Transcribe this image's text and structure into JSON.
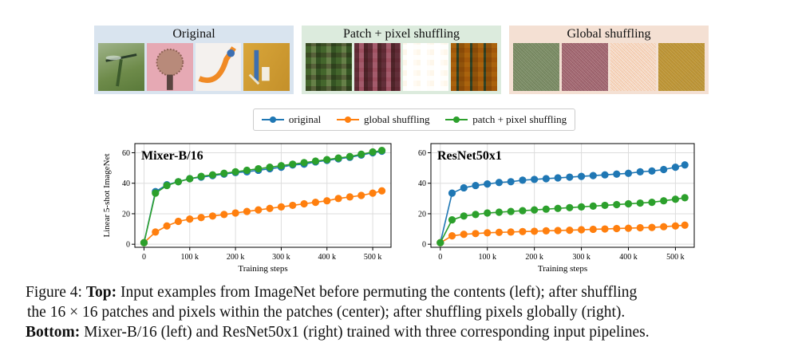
{
  "panels": {
    "original": {
      "title": "Original",
      "bg": "#d9e4ef"
    },
    "patch": {
      "title": "Patch + pixel shuffling",
      "bg": "#dcebdd"
    },
    "global": {
      "title": "Global shuffling",
      "bg": "#f4e0d3"
    }
  },
  "legend": {
    "items": [
      {
        "label": "original",
        "color": "#1f77b4"
      },
      {
        "label": "global shuffling",
        "color": "#ff7f0e"
      },
      {
        "label": "patch + pixel shuffling",
        "color": "#2ca02c"
      }
    ]
  },
  "chart_data": [
    {
      "type": "line",
      "title": "Mixer-B/16",
      "xlabel": "Training steps",
      "ylabel": "Linear 5-shot ImageNet",
      "xlim": [
        -20,
        540
      ],
      "ylim": [
        -2,
        66
      ],
      "xticks": [
        "0",
        "100 k",
        "200 k",
        "300 k",
        "400 k",
        "500 k"
      ],
      "yticks": [
        "0",
        "20",
        "40",
        "60"
      ],
      "grid": true,
      "series": [
        {
          "name": "original",
          "x": [
            0,
            25,
            50,
            75,
            100,
            125,
            150,
            175,
            200,
            225,
            250,
            275,
            300,
            325,
            350,
            375,
            400,
            425,
            450,
            475,
            500,
            520
          ],
          "y": [
            1,
            34.5,
            39,
            41,
            43,
            44,
            45,
            46,
            47,
            47.5,
            48.5,
            49.5,
            50.5,
            52,
            52.5,
            54,
            55,
            56,
            57,
            58.5,
            60,
            61
          ]
        },
        {
          "name": "global shuffling",
          "x": [
            0,
            25,
            50,
            75,
            100,
            125,
            150,
            175,
            200,
            225,
            250,
            275,
            300,
            325,
            350,
            375,
            400,
            425,
            450,
            475,
            500,
            520
          ],
          "y": [
            1,
            8,
            12,
            15,
            16.5,
            17.5,
            18.5,
            19.5,
            20.5,
            21.5,
            22.5,
            23.5,
            24.5,
            25.5,
            26.5,
            27.5,
            28.5,
            30,
            31,
            32,
            33.5,
            35
          ]
        },
        {
          "name": "patch + pixel shuffling",
          "x": [
            0,
            25,
            50,
            75,
            100,
            125,
            150,
            175,
            200,
            225,
            250,
            275,
            300,
            325,
            350,
            375,
            400,
            425,
            450,
            475,
            500,
            520
          ],
          "y": [
            1,
            33.5,
            38.5,
            41,
            43,
            44.5,
            45.5,
            46.5,
            47.5,
            48.5,
            49.5,
            50.5,
            51.5,
            52.5,
            53.5,
            54.5,
            55.5,
            56.5,
            57.5,
            59,
            60.5,
            61.5
          ]
        }
      ]
    },
    {
      "type": "line",
      "title": "ResNet50x1",
      "xlabel": "Training steps",
      "ylabel": "",
      "xlim": [
        -20,
        540
      ],
      "ylim": [
        -2,
        66
      ],
      "xticks": [
        "0",
        "100 k",
        "200 k",
        "300 k",
        "400 k",
        "500 k"
      ],
      "yticks": [
        "0",
        "20",
        "40",
        "60"
      ],
      "grid": true,
      "series": [
        {
          "name": "original",
          "x": [
            0,
            25,
            50,
            75,
            100,
            125,
            150,
            175,
            200,
            225,
            250,
            275,
            300,
            325,
            350,
            375,
            400,
            425,
            450,
            475,
            500,
            520
          ],
          "y": [
            1,
            33.5,
            37,
            38.5,
            39.5,
            40.5,
            41,
            42,
            42.5,
            43,
            43.5,
            44,
            44.5,
            45,
            45.5,
            46,
            46.5,
            47.5,
            48,
            49,
            50.5,
            52
          ]
        },
        {
          "name": "global shuffling",
          "x": [
            0,
            25,
            50,
            75,
            100,
            125,
            150,
            175,
            200,
            225,
            250,
            275,
            300,
            325,
            350,
            375,
            400,
            425,
            450,
            475,
            500,
            520
          ],
          "y": [
            1,
            5.5,
            6.5,
            7,
            7.5,
            7.8,
            8,
            8.3,
            8.5,
            8.8,
            9,
            9.2,
            9.5,
            9.8,
            10,
            10.3,
            10.5,
            10.8,
            11,
            11.5,
            12,
            12.5
          ]
        },
        {
          "name": "patch + pixel shuffling",
          "x": [
            0,
            25,
            50,
            75,
            100,
            125,
            150,
            175,
            200,
            225,
            250,
            275,
            300,
            325,
            350,
            375,
            400,
            425,
            450,
            475,
            500,
            520
          ],
          "y": [
            1,
            16,
            18.5,
            19.5,
            20.5,
            21,
            21.5,
            22,
            22.5,
            23,
            23.5,
            24,
            24.5,
            25,
            25.5,
            26,
            26.5,
            27,
            27.5,
            28.5,
            29.5,
            30.5
          ]
        }
      ]
    }
  ],
  "caption": {
    "label": "Figure 4:",
    "top_bold": "Top:",
    "line1": "Input examples from ImageNet before permuting the contents (left); after shuffling",
    "line2": "the 16 × 16 patches and pixels within the patches (center); after shuffling pixels globally (right).",
    "bottom_bold": "Bottom:",
    "line3": "Mixer-B/16 (left) and ResNet50x1 (right) trained with three corresponding input pipelines."
  }
}
